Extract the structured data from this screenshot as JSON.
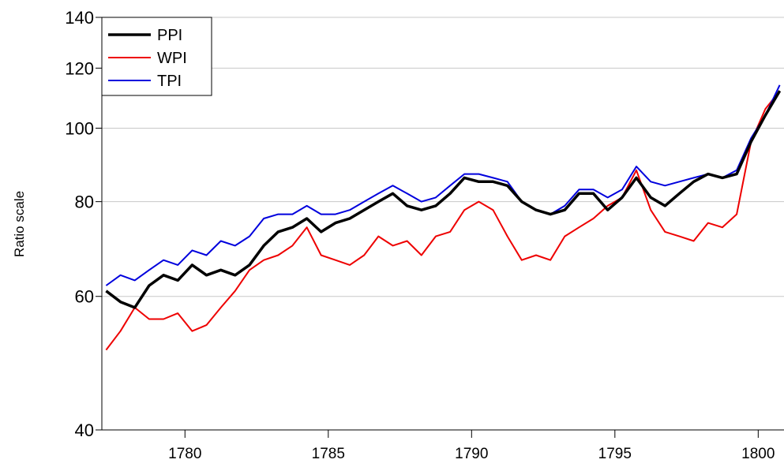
{
  "chart_data": {
    "type": "line",
    "y_label": "Ratio scale",
    "log_scale": "y",
    "grid": true,
    "legend": "upper left",
    "x": [
      1777.25,
      1777.75,
      1778.25,
      1778.75,
      1779.25,
      1779.75,
      1780.25,
      1780.75,
      1781.25,
      1781.75,
      1782.25,
      1782.75,
      1783.25,
      1783.75,
      1784.25,
      1784.75,
      1785.25,
      1785.75,
      1786.25,
      1786.75,
      1787.25,
      1787.75,
      1788.25,
      1788.75,
      1789.25,
      1789.75,
      1790.25,
      1790.75,
      1791.25,
      1791.75,
      1792.25,
      1792.75,
      1793.25,
      1793.75,
      1794.25,
      1794.75,
      1795.25,
      1795.75,
      1796.25,
      1796.75,
      1797.25,
      1797.75,
      1798.25,
      1798.75,
      1799.25,
      1799.75,
      1800.25,
      1800.75
    ],
    "series": [
      {
        "name": "PPI",
        "color": "#000000",
        "width": 3.5,
        "values": [
          61,
          59,
          58,
          62,
          64,
          63,
          66,
          64,
          65,
          64,
          66,
          70,
          73,
          74,
          76,
          73,
          75,
          76,
          78,
          80,
          82,
          79,
          78,
          79,
          82,
          86,
          85,
          85,
          84,
          80,
          78,
          77,
          78,
          82,
          82,
          78,
          81,
          86,
          81,
          79,
          82,
          85,
          87,
          86,
          87,
          96,
          104,
          112
        ]
      },
      {
        "name": "WPI",
        "color": "#ee0000",
        "width": 2,
        "values": [
          51,
          54,
          58,
          56,
          56,
          57,
          54,
          55,
          58,
          61,
          65,
          67,
          68,
          70,
          74,
          68,
          67,
          66,
          68,
          72,
          70,
          71,
          68,
          72,
          73,
          78,
          80,
          78,
          72,
          67,
          68,
          67,
          72,
          74,
          76,
          79,
          81,
          88,
          78,
          73,
          72,
          71,
          75,
          74,
          77,
          96,
          106,
          112
        ]
      },
      {
        "name": "TPI",
        "color": "#0000dd",
        "width": 2,
        "values": [
          62,
          64,
          63,
          65,
          67,
          66,
          69,
          68,
          71,
          70,
          72,
          76,
          77,
          77,
          79,
          77,
          77,
          78,
          80,
          82,
          84,
          82,
          80,
          81,
          84,
          87,
          87,
          86,
          85,
          80,
          78,
          77,
          79,
          83,
          83,
          81,
          83,
          89,
          85,
          84,
          85,
          86,
          87,
          86,
          88,
          97,
          104,
          114
        ]
      }
    ],
    "xlim": [
      1777.1,
      1800.9
    ],
    "xticks": [
      1780,
      1785,
      1790,
      1795,
      1800
    ],
    "ylim": [
      40,
      140
    ],
    "yticks": [
      40,
      60,
      80,
      100,
      120,
      140
    ]
  }
}
